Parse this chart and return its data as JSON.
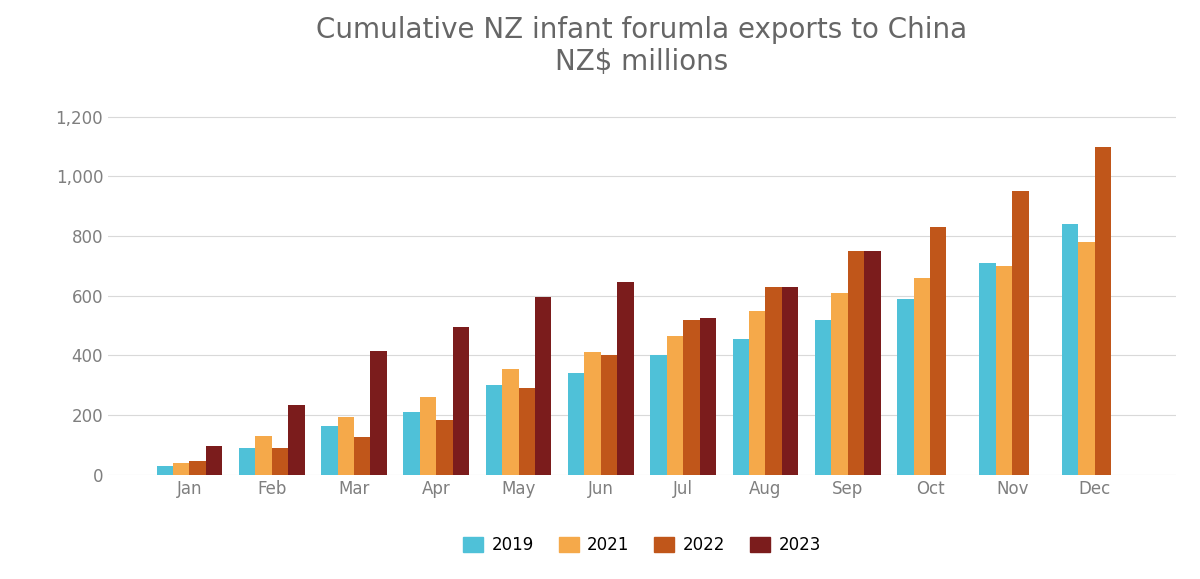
{
  "title": "Cumulative NZ infant forumla exports to China\nNZ$ millions",
  "months": [
    "Jan",
    "Feb",
    "Mar",
    "Apr",
    "May",
    "Jun",
    "Jul",
    "Aug",
    "Sep",
    "Oct",
    "Nov",
    "Dec"
  ],
  "series": {
    "2019": [
      30,
      90,
      165,
      210,
      300,
      340,
      400,
      455,
      520,
      590,
      710,
      840
    ],
    "2021": [
      40,
      130,
      195,
      260,
      355,
      410,
      465,
      550,
      610,
      660,
      700,
      780
    ],
    "2022": [
      45,
      90,
      125,
      185,
      290,
      400,
      520,
      630,
      750,
      830,
      950,
      1100
    ],
    "2023": [
      95,
      235,
      415,
      495,
      595,
      645,
      525,
      630,
      750,
      0,
      0,
      0
    ]
  },
  "colors": {
    "2019": "#4FC1D8",
    "2021": "#F5A94A",
    "2022": "#C0561A",
    "2023": "#7B1C1C"
  },
  "ylim": [
    0,
    1300
  ],
  "yticks": [
    0,
    200,
    400,
    600,
    800,
    1000,
    1200
  ],
  "ytick_labels": [
    "0",
    "200",
    "400",
    "600",
    "800",
    "1,000",
    "1,200"
  ],
  "legend_order": [
    "2019",
    "2021",
    "2022",
    "2023"
  ],
  "bar_width": 0.2,
  "background_color": "#ffffff",
  "title_fontsize": 20,
  "tick_fontsize": 12,
  "legend_fontsize": 12,
  "tick_color": "#7F7F7F",
  "grid_color": "#D9D9D9"
}
